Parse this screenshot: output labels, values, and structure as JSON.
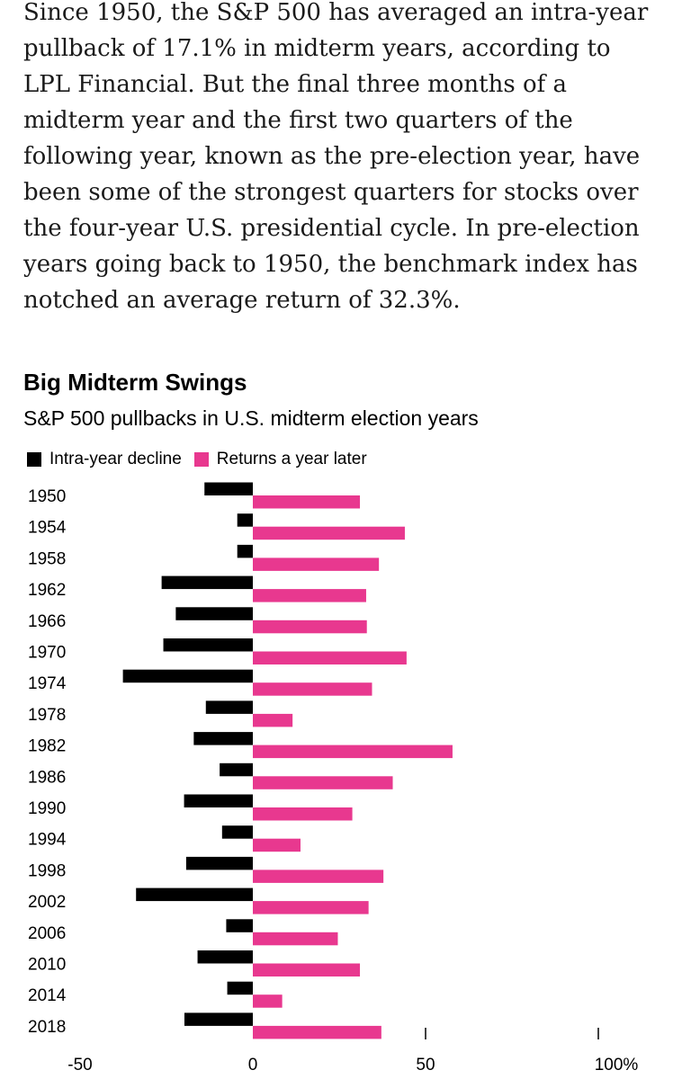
{
  "article": {
    "paragraph": "Since 1950, the S&P 500 has averaged an intra-year pullback of 17.1% in midterm years, according to LPL Financial. But the final three months of a midterm year and the first two quarters of the following year, known as the pre-election year, have been some of the strongest quarters for stocks over the four-year U.S. presidential cycle. In pre-election years going back to 1950, the benchmark index has notched an average return of 32.3%."
  },
  "chart_data": {
    "type": "bar",
    "orientation": "horizontal",
    "title": "Big Midterm Swings",
    "subtitle": "S&P 500 pullbacks in U.S. midterm election years",
    "categories": [
      "1950",
      "1954",
      "1958",
      "1962",
      "1966",
      "1970",
      "1974",
      "1978",
      "1982",
      "1986",
      "1990",
      "1994",
      "1998",
      "2002",
      "2006",
      "2010",
      "2014",
      "2018"
    ],
    "series": [
      {
        "name": "Intra-year decline",
        "color": "#000000",
        "values": [
          -14,
          -4.5,
          -4.5,
          -26.4,
          -22.3,
          -25.9,
          -37.6,
          -13.6,
          -17.1,
          -9.6,
          -19.9,
          -8.9,
          -19.3,
          -33.8,
          -7.7,
          -16.0,
          -7.4,
          -19.8
        ]
      },
      {
        "name": "Returns a year later",
        "color": "#e8388f",
        "values": [
          31.0,
          44.0,
          36.5,
          32.8,
          33.0,
          44.5,
          34.5,
          11.5,
          57.8,
          40.5,
          28.8,
          13.8,
          37.8,
          33.5,
          24.6,
          31.0,
          8.5,
          37.2
        ]
      }
    ],
    "xlim": [
      -50,
      100
    ],
    "x_ticks": [
      "-50",
      "0",
      "50",
      "100%"
    ],
    "legend_position": "top-left",
    "grid": false
  }
}
